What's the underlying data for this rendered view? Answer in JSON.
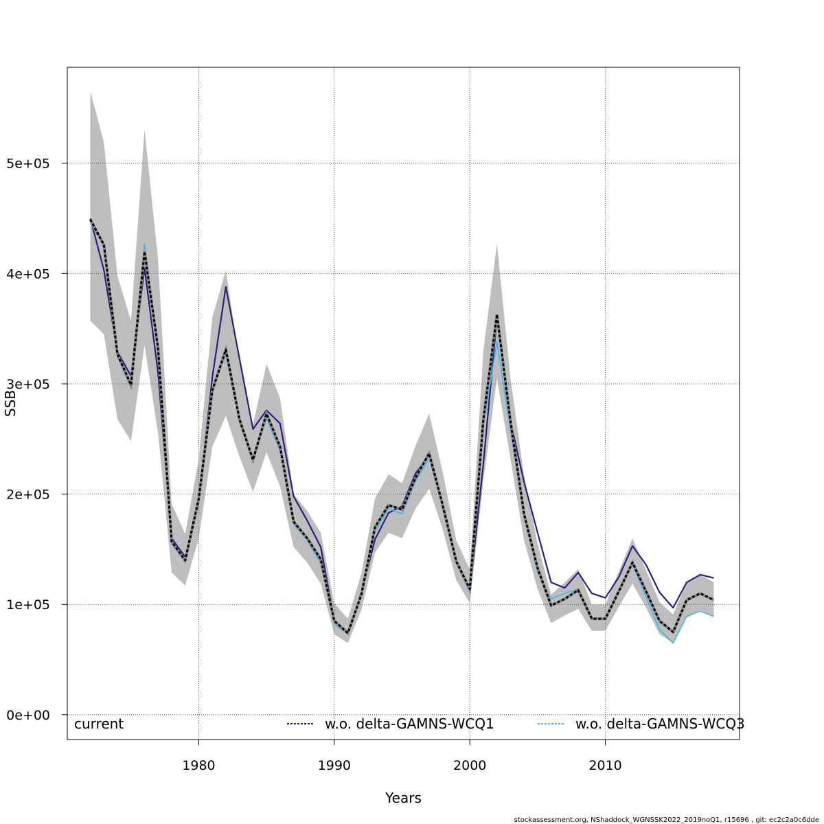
{
  "chart_data": {
    "type": "line",
    "xlabel": "Years",
    "ylabel": "SSB",
    "xlim": [
      1970.3,
      2019.9
    ],
    "ylim": [
      -22500,
      587000
    ],
    "x_ticks": [
      1980,
      1990,
      2000,
      2010
    ],
    "x_tick_labels": [
      "1980",
      "1990",
      "2000",
      "2010"
    ],
    "y_ticks": [
      0,
      100000,
      200000,
      300000,
      400000,
      500000
    ],
    "y_tick_labels": [
      "0e+00",
      "1e+05",
      "2e+05",
      "3e+05",
      "4e+05",
      "5e+05"
    ],
    "grid": true,
    "legend_position": "bottom",
    "x": [
      1972,
      1973,
      1974,
      1975,
      1976,
      1977,
      1978,
      1979,
      1980,
      1981,
      1982,
      1983,
      1984,
      1985,
      1986,
      1987,
      1988,
      1989,
      1990,
      1991,
      1992,
      1993,
      1994,
      1995,
      1996,
      1997,
      1998,
      1999,
      2000,
      2001,
      2002,
      2003,
      2004,
      2005,
      2006,
      2007,
      2008,
      2009,
      2010,
      2011,
      2012,
      2013,
      2014,
      2015,
      2016,
      2017,
      2018
    ],
    "band": {
      "lower": [
        357000,
        345000,
        268000,
        248000,
        335000,
        255000,
        129000,
        117000,
        160000,
        243000,
        271000,
        234000,
        202000,
        238000,
        207000,
        152000,
        138000,
        119000,
        73000,
        65000,
        95000,
        147000,
        165000,
        160000,
        187000,
        205000,
        168000,
        122000,
        101000,
        212000,
        305000,
        232000,
        158000,
        114000,
        83000,
        90000,
        96000,
        76000,
        76000,
        98000,
        119000,
        97000,
        73000,
        65000,
        88000,
        95000,
        89000
      ],
      "upper": [
        565000,
        519000,
        398000,
        357000,
        531000,
        412000,
        191000,
        164000,
        232000,
        360000,
        403000,
        320000,
        263000,
        318000,
        287000,
        200000,
        185000,
        165000,
        101000,
        87000,
        128000,
        196000,
        218000,
        210000,
        244000,
        273000,
        220000,
        158000,
        132000,
        330000,
        427000,
        305000,
        217000,
        155000,
        109000,
        120000,
        132000,
        100000,
        100000,
        130000,
        160000,
        131000,
        102000,
        91000,
        120000,
        127000,
        120000
      ]
    },
    "series": [
      {
        "name": "current",
        "color": "#000000",
        "dash": "4,3",
        "width": 3,
        "values": [
          449000,
          426000,
          327000,
          299000,
          420000,
          332000,
          157000,
          140000,
          196000,
          294000,
          331000,
          268000,
          231000,
          273000,
          243000,
          175000,
          160000,
          141000,
          85000,
          74000,
          109000,
          170000,
          190000,
          186000,
          215000,
          237000,
          190000,
          139000,
          114000,
          268000,
          363000,
          266000,
          182000,
          133000,
          99000,
          105000,
          113000,
          87000,
          87000,
          112000,
          138000,
          112000,
          85000,
          75000,
          104000,
          110000,
          104000
        ]
      },
      {
        "name": "w.o. delta-GAMNS-WCQ1",
        "color": "#2e1e7e",
        "dash": "",
        "width": 2.2,
        "values": [
          450000,
          403000,
          329000,
          307000,
          405000,
          310000,
          160000,
          143000,
          194000,
          306000,
          388000,
          323000,
          259000,
          276000,
          264000,
          198000,
          176000,
          152000,
          86000,
          73000,
          111000,
          159000,
          183000,
          189000,
          219000,
          235000,
          189000,
          140000,
          112000,
          228000,
          360000,
          266000,
          211000,
          165000,
          120000,
          115000,
          129000,
          110000,
          106000,
          125000,
          153000,
          136000,
          111000,
          97000,
          120000,
          127000,
          124000
        ]
      },
      {
        "name": "w.o. delta-GAMNS-WCQ3",
        "color": "#3db8f0",
        "dash": "",
        "width": 1.6,
        "values": [
          446000,
          425000,
          325000,
          296000,
          427000,
          327000,
          155000,
          138000,
          193000,
          295000,
          326000,
          266000,
          230000,
          269000,
          239000,
          173000,
          158000,
          137000,
          82000,
          73000,
          108000,
          166000,
          187000,
          182000,
          212000,
          232000,
          188000,
          138000,
          111000,
          262000,
          338000,
          258000,
          179000,
          129000,
          105000,
          110000,
          114000,
          87000,
          88000,
          111000,
          136000,
          107000,
          77000,
          65000,
          89000,
          94000,
          89000
        ]
      }
    ]
  },
  "legend": {
    "items": [
      {
        "label": "current",
        "color": "#000000",
        "dash": "4,3"
      },
      {
        "label": "w.o. delta-GAMNS-WCQ1",
        "color": "#2e1e7e",
        "dash": "3,2"
      },
      {
        "label": "w.o. delta-GAMNS-WCQ3",
        "color": "#3db8f0",
        "dash": "3,2"
      }
    ]
  },
  "footer": {
    "note": "stockassessment.org, NShaddock_WGNSSK2022_2019noQ1, r15696 , git: ec2c2a0c6dde"
  },
  "colors": {
    "band": "#bebebe",
    "grid": "#555555",
    "frame": "#000000"
  }
}
